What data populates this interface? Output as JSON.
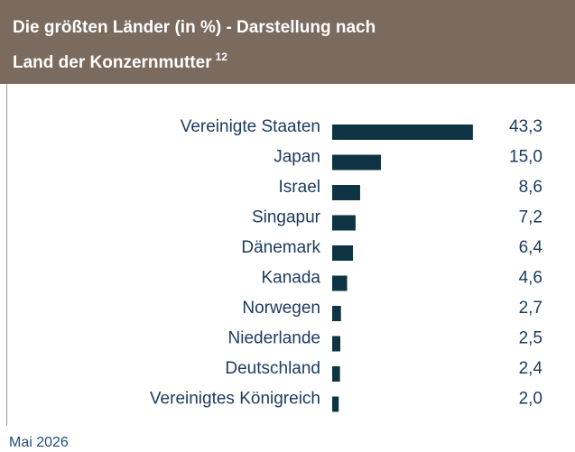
{
  "chart_data": {
    "type": "hbar",
    "title": "Die größten Länder (in %) - Darstellung nach",
    "title_line2": "Land der Konzernmutter",
    "title_superscript": "12",
    "categories": [
      "Vereinigte Staaten",
      "Japan",
      "Israel",
      "Singapur",
      "Dänemark",
      "Kanada",
      "Norwegen",
      "Niederlande",
      "Deutschland",
      "Vereinigtes Königreich"
    ],
    "values": [
      43.3,
      15.0,
      8.6,
      7.2,
      6.4,
      4.6,
      2.7,
      2.5,
      2.4,
      2.0
    ],
    "value_labels": [
      "43,3",
      "15,0",
      "8,6",
      "7,2",
      "6,4",
      "4,6",
      "2,7",
      "2,5",
      "2,4",
      "2,0"
    ],
    "color": "#0e3443",
    "footer": "Mai 2026"
  }
}
